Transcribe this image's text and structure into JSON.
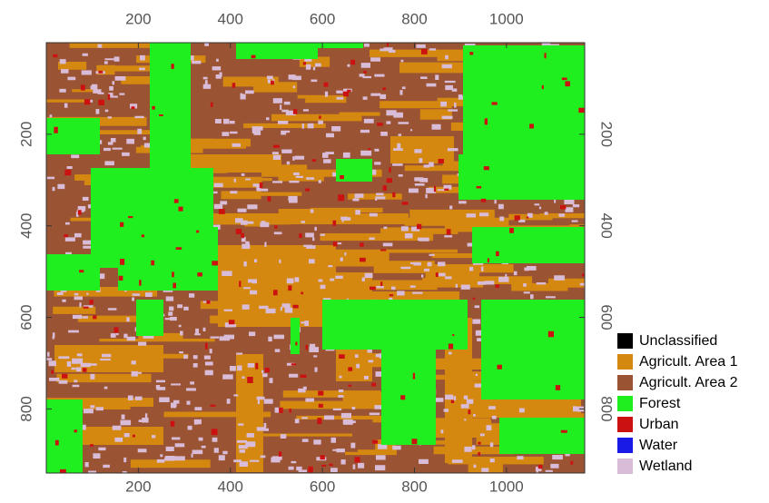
{
  "map": {
    "xlim": [
      0,
      1170
    ],
    "ylim": [
      0,
      940
    ],
    "xticks": [
      200,
      400,
      600,
      800,
      1000
    ],
    "yticks": [
      200,
      400,
      600,
      800
    ],
    "legend": [
      {
        "name": "Unclassified",
        "color": "#000000"
      },
      {
        "name": "Agricult. Area 1",
        "color": "#d4880f"
      },
      {
        "name": "Agricult. Area 2",
        "color": "#9a5434"
      },
      {
        "name": "Forest",
        "color": "#1fee1f"
      },
      {
        "name": "Urban",
        "color": "#cc1111"
      },
      {
        "name": "Water",
        "color": "#1a1ae6"
      },
      {
        "name": "Wetland",
        "color": "#d8bcd8"
      }
    ]
  }
}
